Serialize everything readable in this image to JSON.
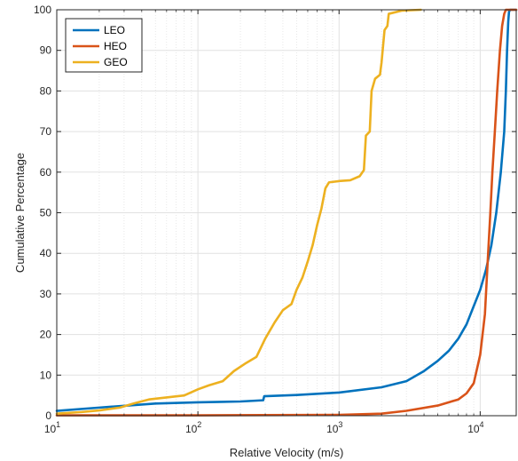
{
  "chart_data": {
    "type": "line",
    "title": "",
    "xlabel": "Relative Velocity (m/s)",
    "ylabel": "Cumulative Percentage",
    "xscale": "log",
    "xlim": [
      10,
      18000
    ],
    "ylim": [
      0,
      100
    ],
    "x_ticks": [
      {
        "base": "10",
        "exp": "1"
      },
      {
        "base": "10",
        "exp": "2"
      },
      {
        "base": "10",
        "exp": "3"
      },
      {
        "base": "10",
        "exp": "4"
      }
    ],
    "x_tick_values": [
      10,
      100,
      1000,
      10000
    ],
    "y_ticks": [
      "0",
      "10",
      "20",
      "30",
      "40",
      "50",
      "60",
      "70",
      "80",
      "90",
      "100"
    ],
    "y_tick_values": [
      0,
      10,
      20,
      30,
      40,
      50,
      60,
      70,
      80,
      90,
      100
    ],
    "grid": true,
    "legend_position": "top-left",
    "series": [
      {
        "name": "LEO",
        "color": "#0072BD",
        "points": [
          [
            10,
            1.2
          ],
          [
            20,
            2.0
          ],
          [
            50,
            3.0
          ],
          [
            100,
            3.3
          ],
          [
            200,
            3.5
          ],
          [
            290,
            3.8
          ],
          [
            295,
            4.8
          ],
          [
            500,
            5.1
          ],
          [
            1000,
            5.7
          ],
          [
            2000,
            7.0
          ],
          [
            3000,
            8.5
          ],
          [
            4000,
            11
          ],
          [
            5000,
            13.5
          ],
          [
            6000,
            16
          ],
          [
            7000,
            19
          ],
          [
            8000,
            22.5
          ],
          [
            9000,
            27
          ],
          [
            10000,
            31
          ],
          [
            11000,
            36
          ],
          [
            12000,
            42
          ],
          [
            13000,
            50
          ],
          [
            14000,
            60
          ],
          [
            14800,
            70
          ],
          [
            15200,
            80
          ],
          [
            15500,
            90
          ],
          [
            15800,
            97
          ],
          [
            16000,
            99.5
          ],
          [
            16300,
            100
          ],
          [
            18000,
            100
          ]
        ]
      },
      {
        "name": "HEO",
        "color": "#D95319",
        "points": [
          [
            10,
            0.1
          ],
          [
            100,
            0.1
          ],
          [
            1000,
            0.2
          ],
          [
            2000,
            0.5
          ],
          [
            3000,
            1.2
          ],
          [
            5000,
            2.5
          ],
          [
            7000,
            4.0
          ],
          [
            8000,
            5.5
          ],
          [
            9000,
            8
          ],
          [
            10000,
            15
          ],
          [
            10800,
            25
          ],
          [
            11300,
            38
          ],
          [
            11800,
            50
          ],
          [
            12200,
            60
          ],
          [
            12700,
            70
          ],
          [
            13200,
            80
          ],
          [
            13800,
            90
          ],
          [
            14300,
            96
          ],
          [
            14800,
            99
          ],
          [
            15200,
            100
          ],
          [
            18000,
            100
          ]
        ]
      },
      {
        "name": "GEO",
        "color": "#EDB120",
        "points": [
          [
            10,
            0.5
          ],
          [
            15,
            0.9
          ],
          [
            20,
            1.3
          ],
          [
            28,
            2.0
          ],
          [
            35,
            3.0
          ],
          [
            45,
            4.0
          ],
          [
            60,
            4.5
          ],
          [
            80,
            5.0
          ],
          [
            100,
            6.5
          ],
          [
            120,
            7.5
          ],
          [
            150,
            8.5
          ],
          [
            180,
            11
          ],
          [
            220,
            13
          ],
          [
            260,
            14.5
          ],
          [
            300,
            19
          ],
          [
            350,
            23
          ],
          [
            400,
            26
          ],
          [
            460,
            27.5
          ],
          [
            500,
            31
          ],
          [
            550,
            34
          ],
          [
            600,
            38
          ],
          [
            650,
            42
          ],
          [
            700,
            47
          ],
          [
            750,
            51
          ],
          [
            800,
            56
          ],
          [
            850,
            57.5
          ],
          [
            1000,
            57.8
          ],
          [
            1200,
            58
          ],
          [
            1400,
            59
          ],
          [
            1500,
            60.5
          ],
          [
            1550,
            69
          ],
          [
            1650,
            70
          ],
          [
            1700,
            80
          ],
          [
            1800,
            83
          ],
          [
            1950,
            84
          ],
          [
            2000,
            87
          ],
          [
            2100,
            95
          ],
          [
            2200,
            96
          ],
          [
            2250,
            99
          ],
          [
            2800,
            99.8
          ],
          [
            3800,
            100
          ]
        ]
      }
    ]
  }
}
